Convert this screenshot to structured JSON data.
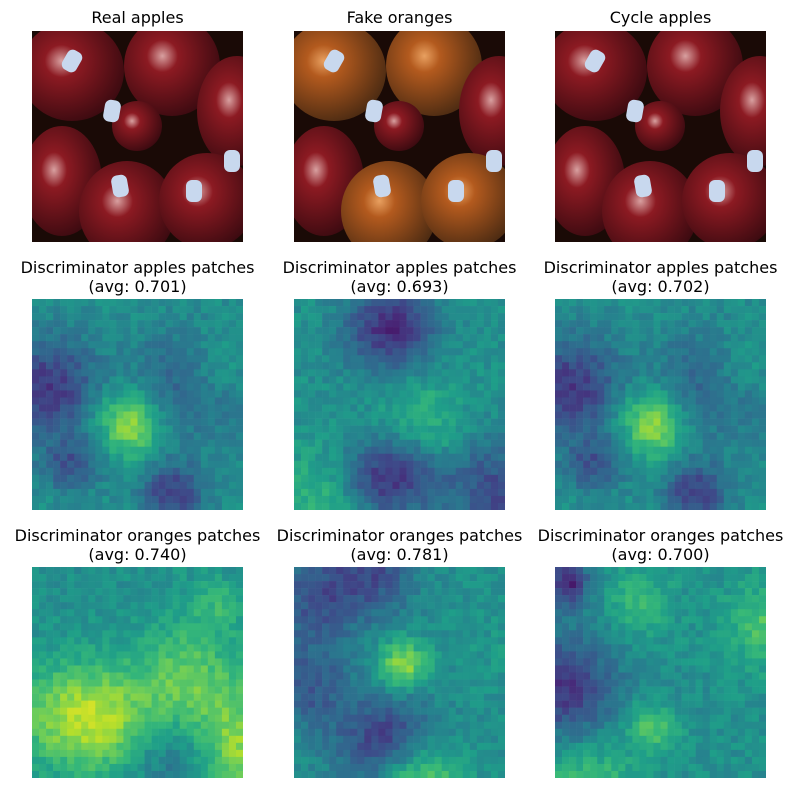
{
  "figure": {
    "rows": [
      {
        "cells": [
          {
            "title_line1": "Real apples",
            "title_line2": "",
            "kind": "photo",
            "variant": "apples"
          },
          {
            "title_line1": "Fake oranges",
            "title_line2": "",
            "kind": "photo",
            "variant": "oranges"
          },
          {
            "title_line1": "Cycle apples",
            "title_line2": "",
            "kind": "photo",
            "variant": "apples"
          }
        ]
      },
      {
        "cells": [
          {
            "title_line1": "Discriminator apples patches",
            "title_line2": "(avg: 0.701)",
            "kind": "heatmap",
            "avg": 0.701
          },
          {
            "title_line1": "Discriminator apples patches",
            "title_line2": "(avg: 0.693)",
            "kind": "heatmap",
            "avg": 0.693
          },
          {
            "title_line1": "Discriminator apples patches",
            "title_line2": "(avg: 0.702)",
            "kind": "heatmap",
            "avg": 0.702
          }
        ]
      },
      {
        "cells": [
          {
            "title_line1": "Discriminator oranges patches",
            "title_line2": "(avg: 0.740)",
            "kind": "heatmap",
            "avg": 0.74
          },
          {
            "title_line1": "Discriminator oranges patches",
            "title_line2": "(avg: 0.781)",
            "kind": "heatmap",
            "avg": 0.781
          },
          {
            "title_line1": "Discriminator oranges patches",
            "title_line2": "(avg: 0.700)",
            "kind": "heatmap",
            "avg": 0.7
          }
        ]
      }
    ],
    "colormap": "viridis",
    "photo_colors": {
      "apple_dark": "#3a0a10",
      "apple_red": "#8c1a22",
      "apple_highlight": "#d8a0a0",
      "orange_body": "#b35a1e",
      "orange_dark": "#4a2a12",
      "sticker": "#c8d8ee",
      "background": "#1a0a06"
    }
  }
}
